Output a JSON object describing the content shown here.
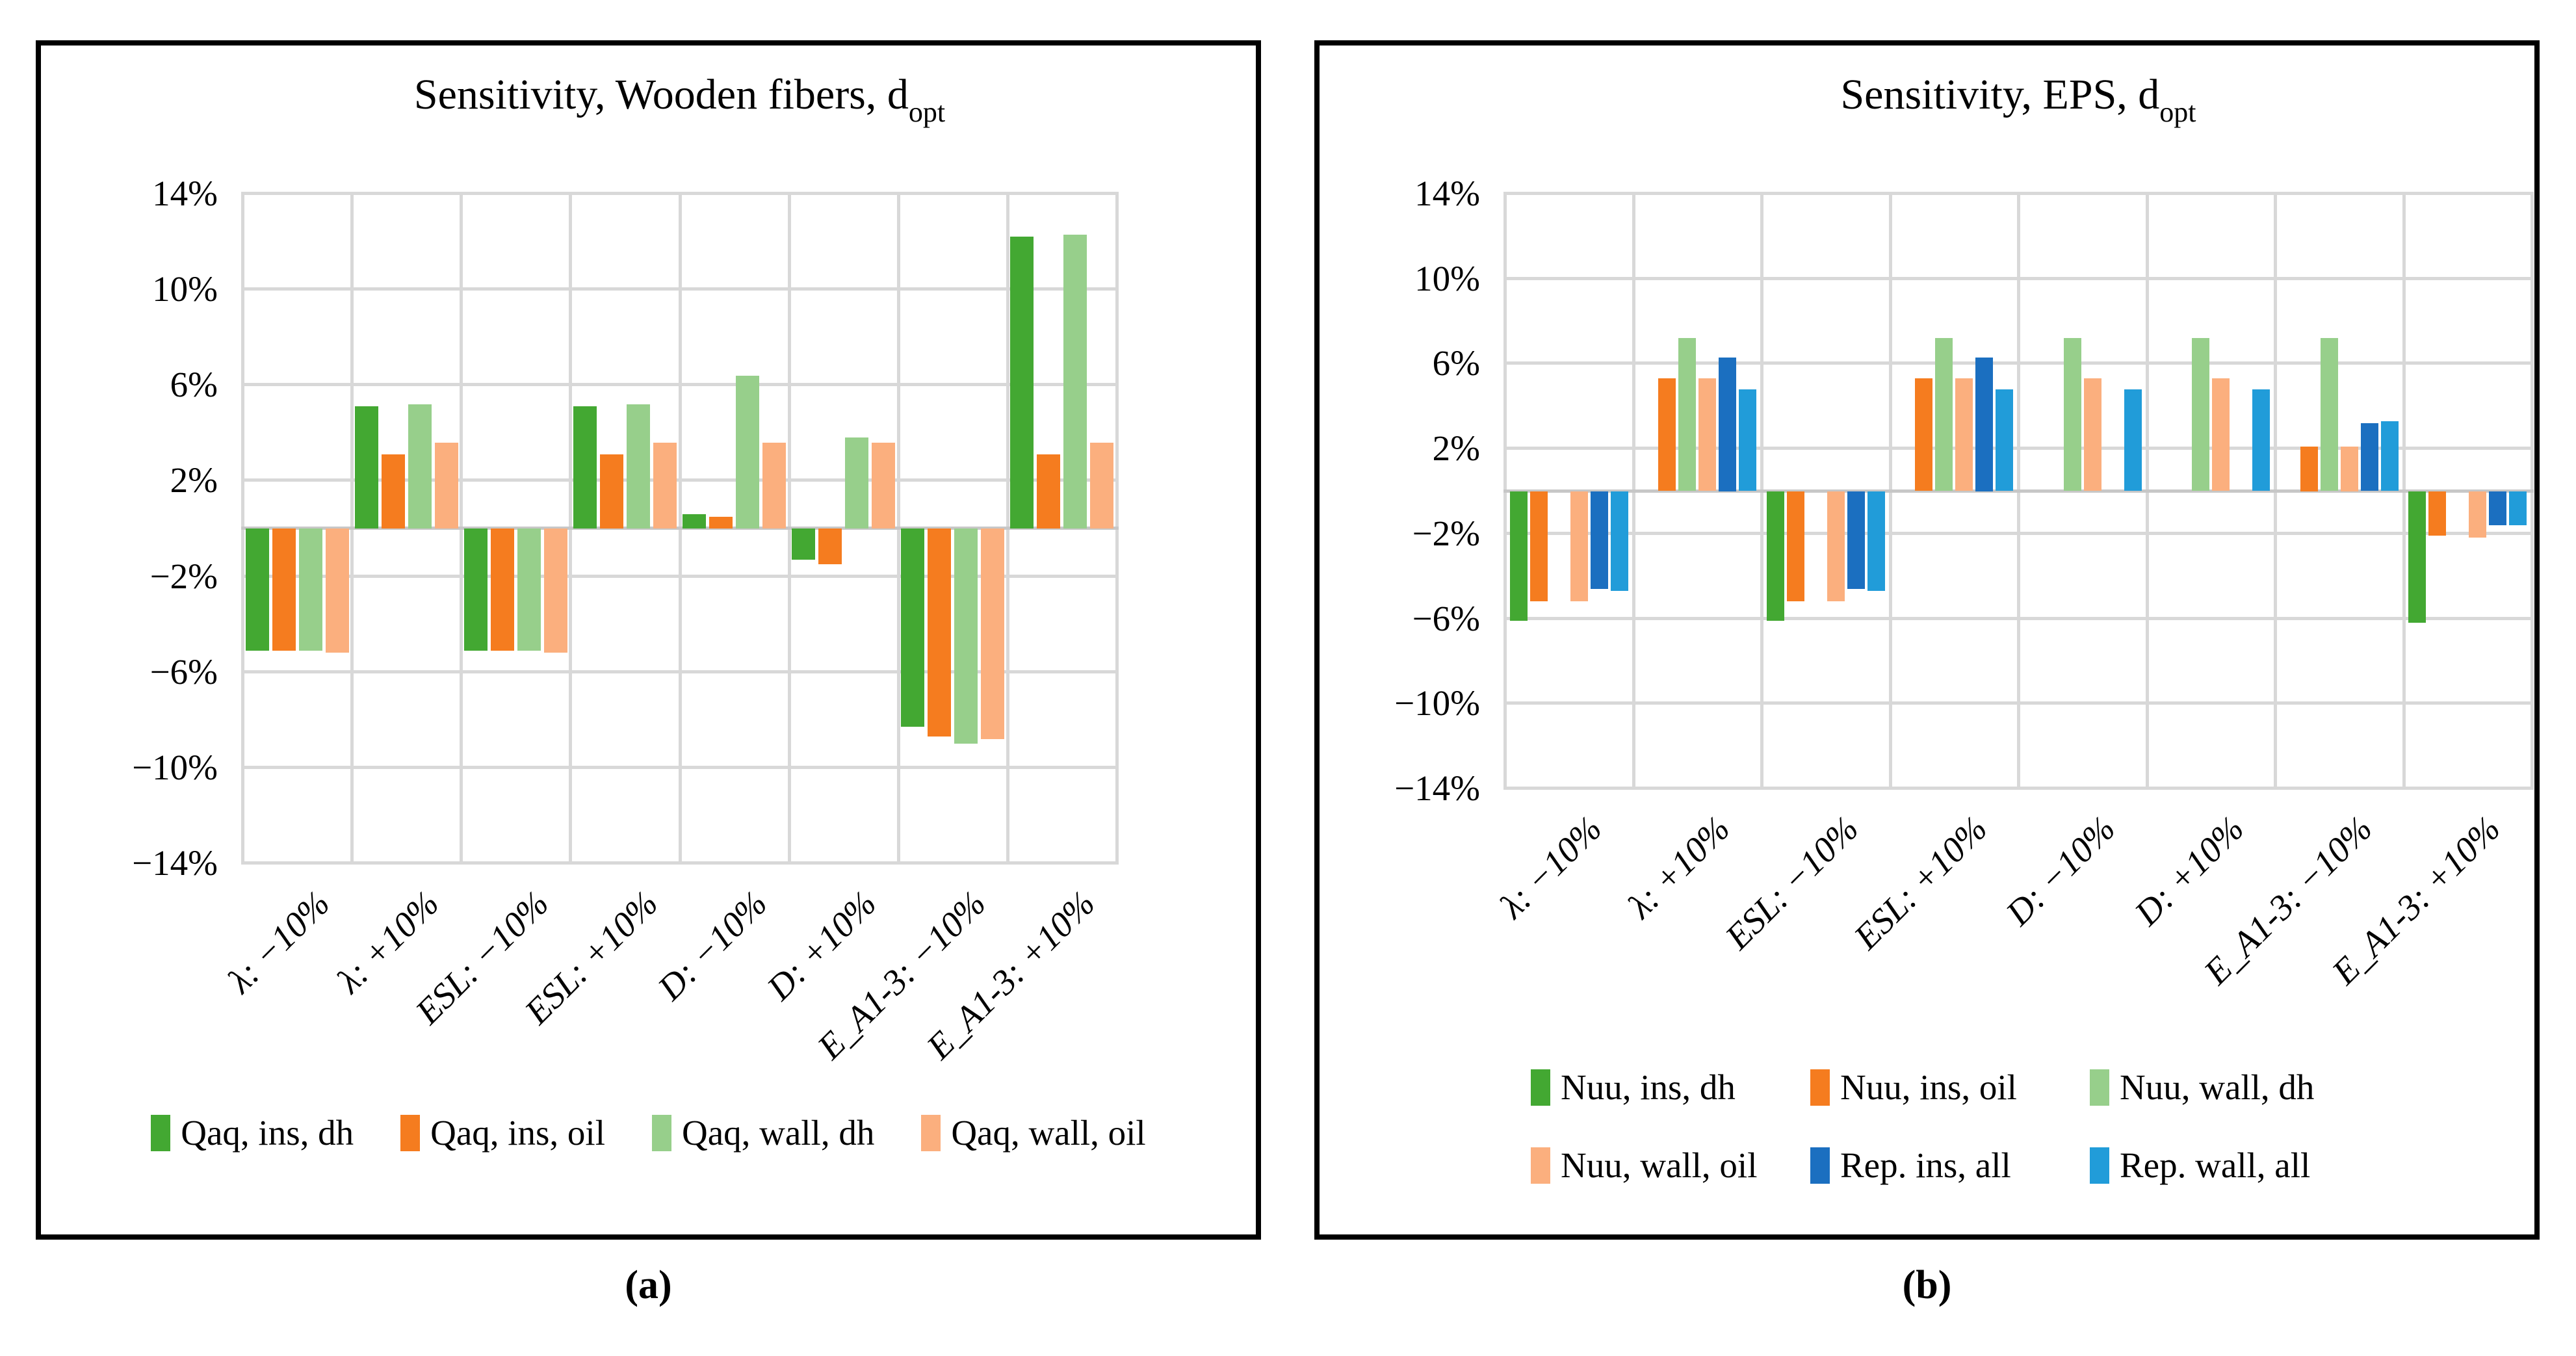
{
  "figure": {
    "captions": {
      "a": "(a)",
      "b": "(b)"
    }
  },
  "chart_data": [
    {
      "id": "a",
      "type": "bar",
      "title": "Sensitivity, Wooden fibers, d_opt",
      "title_main": "Sensitivity, Wooden fibers, d",
      "title_subscript": "opt",
      "categories": [
        "λ: −10%",
        "λ: +10%",
        "ESL: −10%",
        "ESL: +10%",
        "D: −10%",
        "D: +10%",
        "E_A1-3: −10%",
        "E_A1-3: +10%"
      ],
      "series": [
        {
          "name": "Qaq, ins, dh",
          "color": "#43A832",
          "values": [
            -5.1,
            5.1,
            -5.1,
            5.1,
            0.6,
            -1.3,
            -8.3,
            12.2
          ]
        },
        {
          "name": "Qaq, ins, oil",
          "color": "#F57C1F",
          "values": [
            -5.1,
            3.1,
            -5.1,
            3.1,
            0.5,
            -1.5,
            -8.7,
            3.1
          ]
        },
        {
          "name": "Qaq, wall, dh",
          "color": "#97CF8B",
          "values": [
            -5.1,
            5.2,
            -5.1,
            5.2,
            6.4,
            3.8,
            -9.0,
            12.3
          ]
        },
        {
          "name": "Qaq, wall, oil",
          "color": "#FBAF7E",
          "values": [
            -5.2,
            3.6,
            -5.2,
            3.6,
            3.6,
            3.6,
            -8.8,
            3.6
          ]
        }
      ],
      "ylim": [
        -14,
        14
      ],
      "ytick_step": 4,
      "ytick_labels": [
        "14%",
        "10%",
        "6%",
        "2%",
        "−2%",
        "−6%",
        "−10%",
        "−14%"
      ],
      "grid": true,
      "legend_position": "bottom"
    },
    {
      "id": "b",
      "type": "bar",
      "title": "Sensitivity, EPS, d_opt",
      "title_main": "Sensitivity, EPS, d",
      "title_subscript": "opt",
      "categories": [
        "λ: −10%",
        "λ: +10%",
        "ESL: −10%",
        "ESL: +10%",
        "D: −10%",
        "D: +10%",
        "E_A1-3: −10%",
        "E_A1-3: +10%"
      ],
      "series": [
        {
          "name": "Nuu, ins, dh",
          "color": "#43A832",
          "values": [
            -6.1,
            0,
            -6.1,
            0,
            0,
            0,
            0,
            -6.2
          ]
        },
        {
          "name": "Nuu, ins, oil",
          "color": "#F57C1F",
          "values": [
            -5.2,
            5.3,
            -5.2,
            5.3,
            0,
            0,
            2.1,
            -2.1
          ]
        },
        {
          "name": "Nuu, wall, dh",
          "color": "#97CF8B",
          "values": [
            0,
            7.2,
            0,
            7.2,
            7.2,
            7.2,
            7.2,
            0
          ]
        },
        {
          "name": "Nuu, wall, oil",
          "color": "#FBAF7E",
          "values": [
            -5.2,
            5.3,
            -5.2,
            5.3,
            5.3,
            5.3,
            2.1,
            -2.2
          ]
        },
        {
          "name": "Rep. ins, all",
          "color": "#1B6FC0",
          "values": [
            -4.6,
            6.3,
            -4.6,
            6.3,
            0,
            0,
            3.2,
            -1.6
          ]
        },
        {
          "name": "Rep. wall, all",
          "color": "#219CD9",
          "values": [
            -4.7,
            4.8,
            -4.7,
            4.8,
            4.8,
            4.8,
            3.3,
            -1.6
          ]
        }
      ],
      "ylim": [
        -14,
        14
      ],
      "ytick_step": 4,
      "ytick_labels": [
        "14%",
        "10%",
        "6%",
        "2%",
        "−2%",
        "−6%",
        "−10%",
        "−14%"
      ],
      "grid": true,
      "legend_position": "bottom"
    }
  ]
}
